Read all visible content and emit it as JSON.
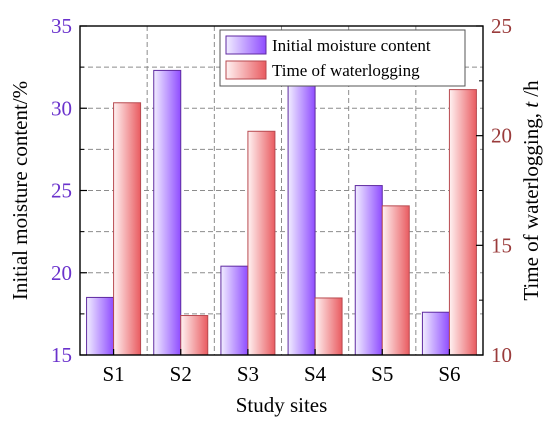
{
  "chart_data": {
    "type": "bar",
    "categories": [
      "S1",
      "S2",
      "S3",
      "S4",
      "S5",
      "S6"
    ],
    "series": [
      {
        "name": "Initial moisture content",
        "axis": "left",
        "values": [
          18.5,
          32.3,
          20.4,
          31.5,
          25.3,
          17.6
        ],
        "color_light": "#f1edff",
        "color_dark": "#8f4dff",
        "stroke": "#5f2aa0"
      },
      {
        "name": "Time of waterlogging",
        "axis": "right",
        "values": [
          21.5,
          11.8,
          20.2,
          12.6,
          16.8,
          22.1
        ],
        "color_light": "#fff2f2",
        "color_dark": "#e95b60",
        "stroke": "#b84a50"
      }
    ],
    "xlabel": "Study sites",
    "ylabel_left": "Initial moisture content/%",
    "ylabel_right_prefix": "Time of waterlogging, ",
    "ylabel_right_var": "t",
    "ylabel_right_unit": "/h",
    "ylim_left": [
      15,
      35
    ],
    "ylim_right": [
      10,
      25
    ],
    "yticks_left": [
      15,
      20,
      25,
      30,
      35
    ],
    "yticks_right": [
      10,
      15,
      20,
      25
    ],
    "grid": true,
    "legend_position": "top-right",
    "colors": {
      "left_axis": "#6a32cc",
      "right_axis": "#9a3b3b",
      "grid": "#8c8c8c",
      "frame": "#000000",
      "text": "#000000"
    }
  }
}
